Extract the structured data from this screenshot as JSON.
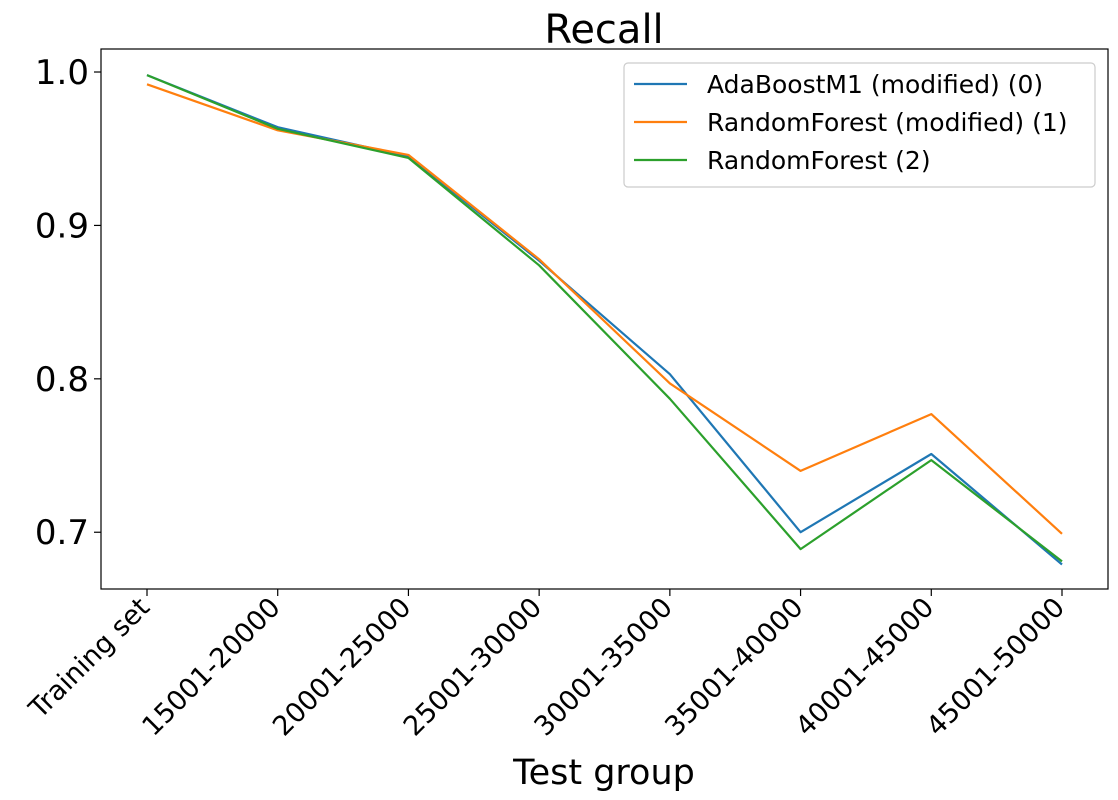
{
  "chart_data": {
    "type": "line",
    "title": "Recall",
    "xlabel": "Test group",
    "ylabel": "",
    "categories": [
      "Training set",
      "15001-20000",
      "20001-25000",
      "25001-30000",
      "30001-35000",
      "35001-40000",
      "40001-45000",
      "45001-50000"
    ],
    "ylim": [
      0.663,
      1.015
    ],
    "yticks": [
      0.7,
      0.8,
      0.9,
      1.0
    ],
    "ytick_labels": [
      "0.7",
      "0.8",
      "0.9",
      "1.0"
    ],
    "grid": false,
    "legend_position": "top-right",
    "series": [
      {
        "name": "AdaBoostM1 (modified) (0)",
        "color": "#1f77b4",
        "values": [
          0.998,
          0.964,
          0.945,
          0.877,
          0.803,
          0.7,
          0.751,
          0.679
        ]
      },
      {
        "name": "RandomForest (modified) (1)",
        "color": "#ff7f0e",
        "values": [
          0.992,
          0.962,
          0.946,
          0.878,
          0.797,
          0.74,
          0.777,
          0.699
        ]
      },
      {
        "name": "RandomForest (2)",
        "color": "#2ca02c",
        "values": [
          0.998,
          0.963,
          0.944,
          0.874,
          0.787,
          0.689,
          0.747,
          0.681
        ]
      }
    ]
  }
}
